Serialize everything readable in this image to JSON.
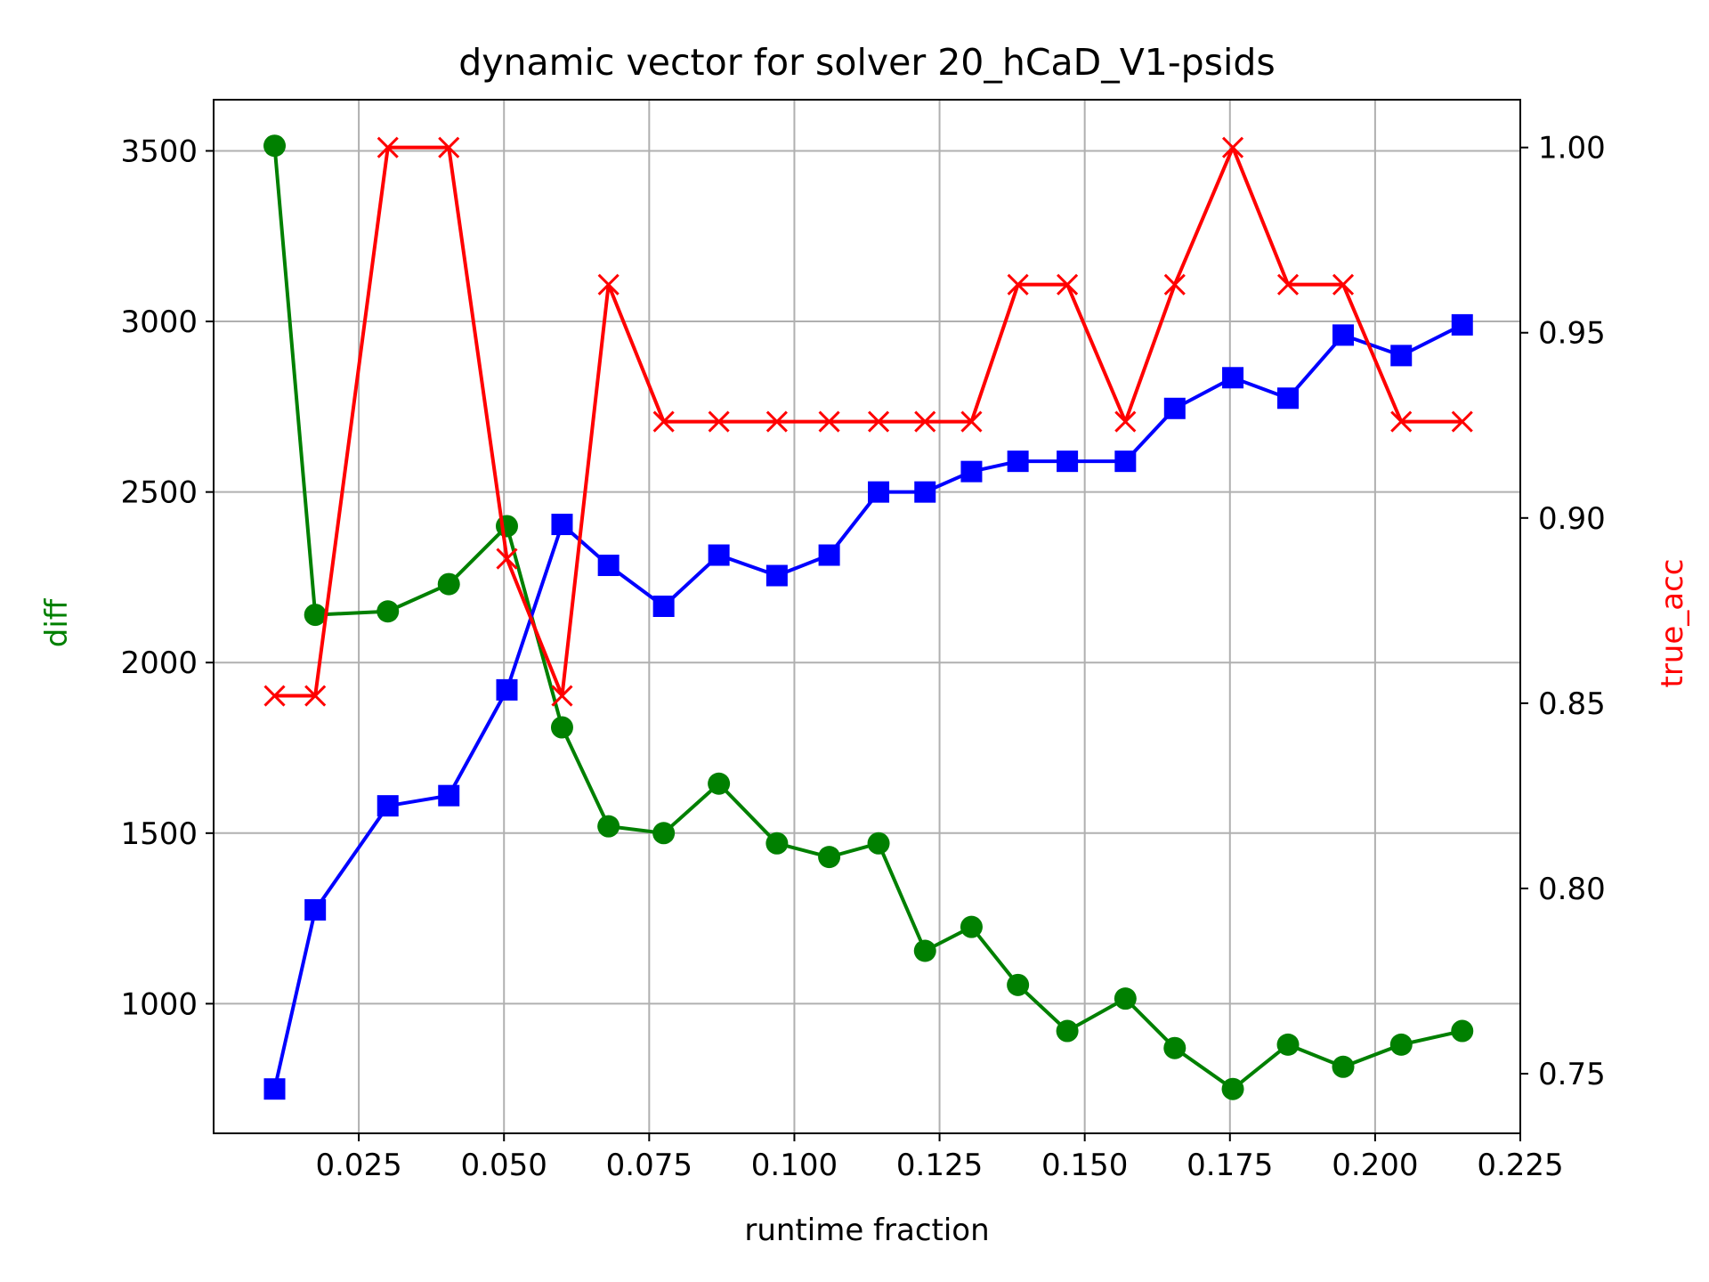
{
  "chart_data": {
    "type": "line",
    "title": "dynamic vector for solver 20_hCaD_V1-psids",
    "xlabel": "runtime fraction",
    "ylabel_left": "diff",
    "ylabel_right": "true_acc",
    "xlim": [
      0.0,
      0.225
    ],
    "ylim_left": [
      620,
      3650
    ],
    "ylim_right": [
      0.7339,
      1.0129
    ],
    "x_ticks": [
      0.025,
      0.05,
      0.075,
      0.1,
      0.125,
      0.15,
      0.175,
      0.2,
      0.225
    ],
    "x_tick_labels": [
      "0.025",
      "0.050",
      "0.075",
      "0.100",
      "0.125",
      "0.150",
      "0.175",
      "0.200",
      "0.225"
    ],
    "y_left_ticks": [
      1000,
      1500,
      2000,
      2500,
      3000,
      3500
    ],
    "y_left_tick_labels": [
      "1000",
      "1500",
      "2000",
      "2500",
      "3000",
      "3500"
    ],
    "y_right_ticks": [
      0.75,
      0.8,
      0.85,
      0.9,
      0.95,
      1.0
    ],
    "y_right_tick_labels": [
      "0.75",
      "0.80",
      "0.85",
      "0.90",
      "0.95",
      "1.00"
    ],
    "grid": true,
    "colors": {
      "diff": "#008000",
      "blue_series": "#0000ff",
      "true_acc": "#ff0000",
      "axes": "#000000",
      "grid": "#b0b0b0"
    },
    "x": [
      0.0105,
      0.0175,
      0.03,
      0.0405,
      0.0505,
      0.06,
      0.068,
      0.0775,
      0.087,
      0.097,
      0.106,
      0.1145,
      0.1225,
      0.1305,
      0.1385,
      0.147,
      0.157,
      0.1655,
      0.1755,
      0.185,
      0.1945,
      0.2045,
      0.215
    ],
    "series": [
      {
        "axis": "left",
        "color": "#008000",
        "marker": "circle",
        "values": [
          3515,
          2140,
          2150,
          2230,
          2400,
          1810,
          1520,
          1500,
          1645,
          1470,
          1430,
          1470,
          1155,
          1225,
          1055,
          920,
          1015,
          870,
          750,
          880,
          815,
          880,
          920
        ]
      },
      {
        "axis": "left",
        "color": "#0000ff",
        "marker": "square",
        "values": [
          750,
          1275,
          1580,
          1610,
          1920,
          2405,
          2285,
          2165,
          2315,
          2255,
          2315,
          2500,
          2500,
          2560,
          2590,
          2590,
          2590,
          2745,
          2835,
          2775,
          2960,
          2900,
          2990
        ]
      },
      {
        "axis": "right",
        "color": "#ff0000",
        "marker": "x",
        "values": [
          0.852,
          0.852,
          1.0,
          1.0,
          0.889,
          0.852,
          0.963,
          0.926,
          0.926,
          0.926,
          0.926,
          0.926,
          0.926,
          0.926,
          0.963,
          0.963,
          0.926,
          0.963,
          1.0,
          0.963,
          0.963,
          0.926,
          0.926
        ]
      }
    ]
  }
}
